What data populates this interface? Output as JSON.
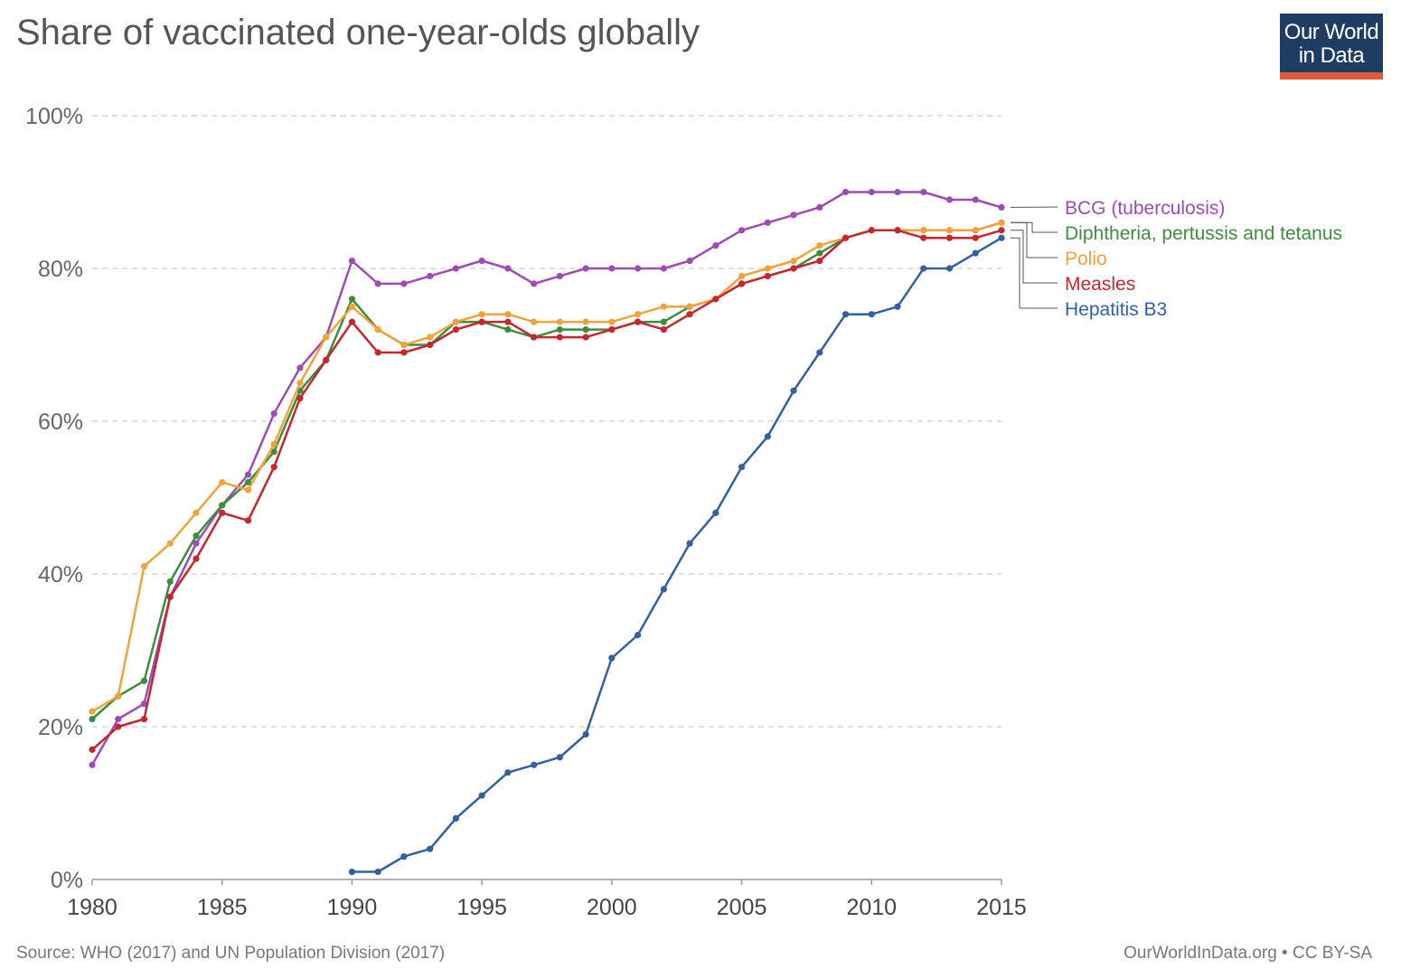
{
  "header": {
    "title": "Share of vaccinated one-year-olds globally"
  },
  "logo": {
    "line1": "Our World",
    "line2": "in Data",
    "colors": {
      "background": "#1d3d63",
      "bar": "#e15a3c"
    }
  },
  "footer": {
    "source": "Source: WHO (2017) and UN Population Division (2017)",
    "site": "OurWorldInData.org",
    "separator": " • ",
    "license": "CC BY-SA"
  },
  "chart_data": {
    "type": "line",
    "title": "Share of vaccinated one-year-olds globally",
    "xlabel": "",
    "ylabel": "",
    "xlim": [
      1980,
      2015
    ],
    "ylim": [
      0,
      100
    ],
    "x_ticks": [
      1980,
      1985,
      1990,
      1995,
      2000,
      2005,
      2010,
      2015
    ],
    "y_ticks": [
      0,
      20,
      40,
      60,
      80,
      100
    ],
    "y_tick_labels": [
      "0%",
      "20%",
      "40%",
      "60%",
      "80%",
      "100%"
    ],
    "grid": "horizontal dashed",
    "legend": "right, line-end labels",
    "series": [
      {
        "name": "BCG (tuberculosis)",
        "color": "#9d4cb4",
        "x": [
          1980,
          1981,
          1982,
          1983,
          1984,
          1985,
          1986,
          1987,
          1988,
          1989,
          1990,
          1991,
          1992,
          1993,
          1994,
          1995,
          1996,
          1997,
          1998,
          1999,
          2000,
          2001,
          2002,
          2003,
          2004,
          2005,
          2006,
          2007,
          2008,
          2009,
          2010,
          2011,
          2012,
          2013,
          2014,
          2015
        ],
        "values": [
          15,
          21,
          23,
          37,
          44,
          49,
          53,
          61,
          67,
          71,
          81,
          78,
          78,
          79,
          80,
          81,
          80,
          78,
          79,
          80,
          80,
          80,
          80,
          81,
          83,
          85,
          86,
          87,
          88,
          90,
          90,
          90,
          90,
          89,
          89,
          88
        ]
      },
      {
        "name": "Diphtheria, pertussis and tetanus",
        "color": "#3b8f3c",
        "x": [
          1980,
          1981,
          1982,
          1983,
          1984,
          1985,
          1986,
          1987,
          1988,
          1989,
          1990,
          1991,
          1992,
          1993,
          1994,
          1995,
          1996,
          1997,
          1998,
          1999,
          2000,
          2001,
          2002,
          2003,
          2004,
          2005,
          2006,
          2007,
          2008,
          2009,
          2010,
          2011,
          2012,
          2013,
          2014,
          2015
        ],
        "values": [
          21,
          24,
          26,
          39,
          45,
          49,
          52,
          56,
          64,
          68,
          76,
          72,
          70,
          70,
          73,
          73,
          72,
          71,
          72,
          72,
          72,
          73,
          73,
          75,
          76,
          78,
          79,
          80,
          82,
          84,
          85,
          85,
          85,
          85,
          85,
          86
        ]
      },
      {
        "name": "Polio",
        "color": "#f0a33a",
        "x": [
          1980,
          1981,
          1982,
          1983,
          1984,
          1985,
          1986,
          1987,
          1988,
          1989,
          1990,
          1991,
          1992,
          1993,
          1994,
          1995,
          1996,
          1997,
          1998,
          1999,
          2000,
          2001,
          2002,
          2003,
          2004,
          2005,
          2006,
          2007,
          2008,
          2009,
          2010,
          2011,
          2012,
          2013,
          2014,
          2015
        ],
        "values": [
          22,
          24,
          41,
          44,
          48,
          52,
          51,
          57,
          65,
          71,
          75,
          72,
          70,
          71,
          73,
          74,
          74,
          73,
          73,
          73,
          73,
          74,
          75,
          75,
          76,
          79,
          80,
          81,
          83,
          84,
          85,
          85,
          85,
          85,
          85,
          86
        ]
      },
      {
        "name": "Measles",
        "color": "#c6262e",
        "x": [
          1980,
          1981,
          1982,
          1983,
          1984,
          1985,
          1986,
          1987,
          1988,
          1989,
          1990,
          1991,
          1992,
          1993,
          1994,
          1995,
          1996,
          1997,
          1998,
          1999,
          2000,
          2001,
          2002,
          2003,
          2004,
          2005,
          2006,
          2007,
          2008,
          2009,
          2010,
          2011,
          2012,
          2013,
          2014,
          2015
        ],
        "values": [
          17,
          20,
          21,
          37,
          42,
          48,
          47,
          54,
          63,
          68,
          73,
          69,
          69,
          70,
          72,
          73,
          73,
          71,
          71,
          71,
          72,
          73,
          72,
          74,
          76,
          78,
          79,
          80,
          81,
          84,
          85,
          85,
          84,
          84,
          84,
          85
        ]
      },
      {
        "name": "Hepatitis B3",
        "color": "#3360a1",
        "x": [
          1990,
          1991,
          1992,
          1993,
          1994,
          1995,
          1996,
          1997,
          1998,
          1999,
          2000,
          2001,
          2002,
          2003,
          2004,
          2005,
          2006,
          2007,
          2008,
          2009,
          2010,
          2011,
          2012,
          2013,
          2014,
          2015
        ],
        "values": [
          1,
          1,
          3,
          4,
          8,
          11,
          14,
          15,
          16,
          19,
          29,
          32,
          38,
          44,
          48,
          54,
          58,
          64,
          69,
          74,
          74,
          75,
          80,
          80,
          82,
          84
        ]
      }
    ]
  }
}
